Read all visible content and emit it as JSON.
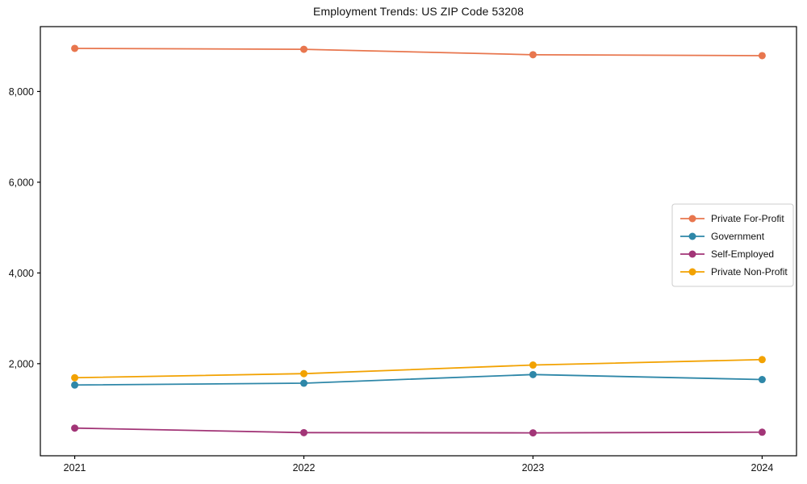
{
  "page": {
    "background": "#ffffff",
    "text_color": "#111111",
    "axis_color": "#000000"
  },
  "chart_data": {
    "type": "line",
    "title": "Employment Trends: US ZIP Code 53208",
    "xlabel": "",
    "ylabel": "",
    "x": [
      2021,
      2022,
      2023,
      2024
    ],
    "x_tick_labels": [
      "2021",
      "2022",
      "2023",
      "2024"
    ],
    "y_ticks": [
      2000,
      4000,
      6000,
      8000
    ],
    "y_tick_labels": [
      "2,000",
      "4,000",
      "6,000",
      "8,000"
    ],
    "xlim": [
      2020.85,
      2024.15
    ],
    "ylim": [
      -30,
      9430
    ],
    "grid": false,
    "legend_position": "center-right",
    "marker": "circle",
    "series": [
      {
        "name": "Private For-Profit",
        "color": "#e8764e",
        "values": [
          8950,
          8930,
          8810,
          8790
        ]
      },
      {
        "name": "Government",
        "color": "#2e87a8",
        "values": [
          1530,
          1570,
          1760,
          1650
        ]
      },
      {
        "name": "Self-Employed",
        "color": "#a23577",
        "values": [
          580,
          480,
          475,
          490
        ]
      },
      {
        "name": "Private Non-Profit",
        "color": "#f2a202",
        "values": [
          1690,
          1780,
          1970,
          2090
        ]
      }
    ]
  }
}
